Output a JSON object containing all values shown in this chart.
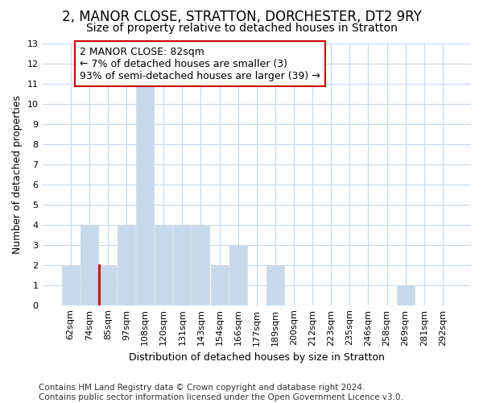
{
  "title": "2, MANOR CLOSE, STRATTON, DORCHESTER, DT2 9RY",
  "subtitle": "Size of property relative to detached houses in Stratton",
  "xlabel": "Distribution of detached houses by size in Stratton",
  "ylabel": "Number of detached properties",
  "categories": [
    "62sqm",
    "74sqm",
    "85sqm",
    "97sqm",
    "108sqm",
    "120sqm",
    "131sqm",
    "143sqm",
    "154sqm",
    "166sqm",
    "177sqm",
    "189sqm",
    "200sqm",
    "212sqm",
    "223sqm",
    "235sqm",
    "246sqm",
    "258sqm",
    "269sqm",
    "281sqm",
    "292sqm"
  ],
  "values": [
    2,
    4,
    2,
    4,
    11,
    4,
    4,
    4,
    2,
    3,
    0,
    2,
    0,
    0,
    0,
    0,
    0,
    0,
    1,
    0,
    0
  ],
  "bar_color": "#c8daea",
  "bar_edge_color": "#c8daea",
  "highlight_bar_index": 2,
  "highlight_edge_color": "#cc0000",
  "annotation_text": "2 MANOR CLOSE: 82sqm\n← 7% of detached houses are smaller (3)\n93% of semi-detached houses are larger (39) →",
  "annotation_box_facecolor": "#ffffff",
  "annotation_edge_color": "#cc0000",
  "ylim": [
    0,
    13
  ],
  "yticks": [
    0,
    1,
    2,
    3,
    4,
    5,
    6,
    7,
    8,
    9,
    10,
    11,
    12,
    13
  ],
  "footer": "Contains HM Land Registry data © Crown copyright and database right 2024.\nContains public sector information licensed under the Open Government Licence v3.0.",
  "background_color": "#ffffff",
  "plot_bg_color": "#ffffff",
  "grid_color": "#c8d8e8",
  "title_fontsize": 12,
  "subtitle_fontsize": 10,
  "axis_label_fontsize": 9,
  "tick_fontsize": 8,
  "annotation_fontsize": 9,
  "footer_fontsize": 7.5
}
